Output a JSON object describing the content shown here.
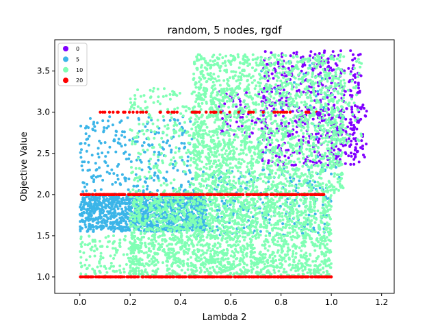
{
  "chart_data": {
    "type": "scatter",
    "title": "random, 5 nodes, rgdf",
    "xlabel": "Lambda 2",
    "ylabel": "Objective Value",
    "xlim": [
      -0.1,
      1.25
    ],
    "ylim": [
      0.8,
      3.88
    ],
    "xticks": [
      "0.0",
      "0.2",
      "0.4",
      "0.6",
      "0.8",
      "1.0",
      "1.2"
    ],
    "xtick_values": [
      0.0,
      0.2,
      0.4,
      0.6,
      0.8,
      1.0,
      1.2
    ],
    "yticks": [
      "1.0",
      "1.5",
      "2.0",
      "2.5",
      "3.0",
      "3.5"
    ],
    "ytick_values": [
      1.0,
      1.5,
      2.0,
      2.5,
      3.0,
      3.5
    ],
    "grid": false,
    "legend_position": "top-left",
    "series": [
      {
        "name": "0",
        "color": "#8000ff",
        "clusters": [
          {
            "x": [
              0.72,
              1.12
            ],
            "y": [
              2.35,
              3.75
            ],
            "count": 520
          },
          {
            "x": [
              0.55,
              0.75
            ],
            "y": [
              2.7,
              3.3
            ],
            "count": 70
          },
          {
            "x": [
              1.0,
              1.15
            ],
            "y": [
              2.45,
              3.1
            ],
            "count": 60
          }
        ]
      },
      {
        "name": "5",
        "color": "#3bb5e8",
        "clusters": [
          {
            "x": [
              0.0,
              0.5
            ],
            "y": [
              1.55,
              2.0
            ],
            "count": 1100
          },
          {
            "x": [
              0.0,
              0.45
            ],
            "y": [
              2.0,
              2.95
            ],
            "count": 260
          },
          {
            "x": [
              0.45,
              1.0
            ],
            "y": [
              1.5,
              2.3
            ],
            "count": 260
          },
          {
            "x": [
              0.7,
              1.05
            ],
            "y": [
              2.2,
              3.7
            ],
            "count": 50
          }
        ]
      },
      {
        "name": "10",
        "color": "#80ffb4",
        "clusters": [
          {
            "x": [
              0.45,
              1.05
            ],
            "y": [
              2.0,
              3.7
            ],
            "count": 1900
          },
          {
            "x": [
              0.2,
              1.0
            ],
            "y": [
              1.0,
              2.0
            ],
            "count": 2100
          },
          {
            "x": [
              0.2,
              0.6
            ],
            "y": [
              2.0,
              3.3
            ],
            "count": 380
          },
          {
            "x": [
              0.0,
              0.25
            ],
            "y": [
              1.0,
              1.5
            ],
            "count": 130
          },
          {
            "x": [
              1.0,
              1.12
            ],
            "y": [
              2.6,
              3.65
            ],
            "count": 70
          }
        ]
      },
      {
        "name": "20",
        "color": "#ff0000",
        "lines": [
          {
            "y": 1.0,
            "x": [
              0.0,
              1.0
            ],
            "count": 420
          },
          {
            "y": 2.0,
            "x": [
              0.0,
              0.98
            ],
            "count": 330
          },
          {
            "y": 3.0,
            "x": [
              0.04,
              0.97
            ],
            "count": 60
          }
        ]
      }
    ],
    "highlight_point": {
      "x": 0.95,
      "y": 2.98,
      "color": "#8000ff"
    }
  }
}
